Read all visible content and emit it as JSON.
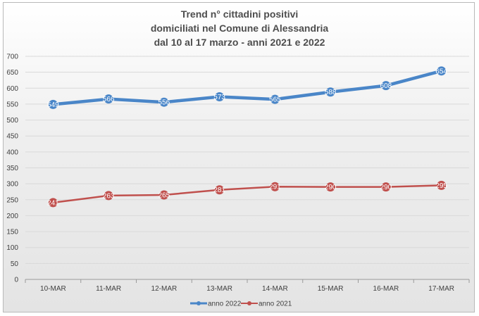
{
  "chart_data": {
    "type": "line",
    "title_lines": [
      "Trend n° cittadini positivi",
      "domiciliati nel Comune di Alessandria",
      "dal 10 al 17 marzo - anni 2021 e 2022"
    ],
    "categories": [
      "10-MAR",
      "11-MAR",
      "12-MAR",
      "13-MAR",
      "14-MAR",
      "15-MAR",
      "16-MAR",
      "17-MAR"
    ],
    "series": [
      {
        "name": "anno 2022",
        "color": "#4a86c8",
        "values": [
          549,
          566,
          556,
          573,
          565,
          588,
          608,
          654
        ]
      },
      {
        "name": "anno 2021",
        "color": "#c0504d",
        "values": [
          241,
          263,
          265,
          281,
          291,
          290,
          290,
          295
        ]
      }
    ],
    "ylim": [
      0,
      700
    ],
    "yticks": [
      0,
      50,
      100,
      150,
      200,
      250,
      300,
      350,
      400,
      450,
      500,
      550,
      600,
      650,
      700
    ],
    "grid": true,
    "legend": "bottom"
  }
}
